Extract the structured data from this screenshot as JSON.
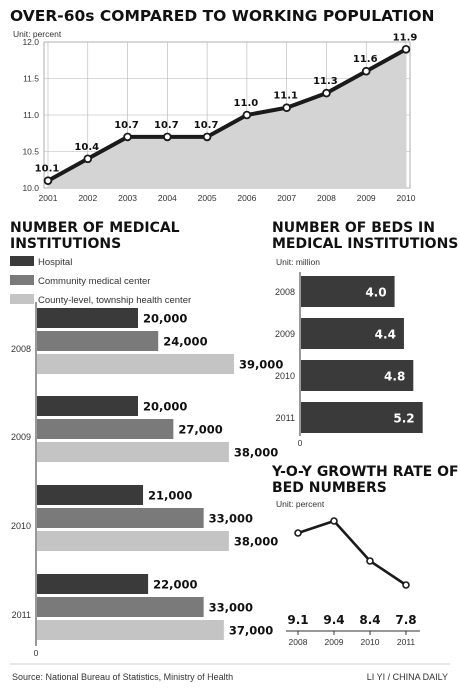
{
  "colors": {
    "hospital": "#3a3a3a",
    "community": "#7a7a7a",
    "county": "#c4c4c4",
    "beds": "#3a3a3a",
    "area_fill": "#d4d4d4",
    "line": "#1a1a1a"
  },
  "chart_data": [
    {
      "type": "area",
      "title": "OVER-60s COMPARED TO WORKING POPULATION",
      "unit": "Unit: percent",
      "categories": [
        "2001",
        "2002",
        "2003",
        "2004",
        "2005",
        "2006",
        "2007",
        "2008",
        "2009",
        "2010"
      ],
      "series": [
        {
          "values": [
            10.1,
            10.4,
            10.7,
            10.7,
            10.7,
            11.0,
            11.1,
            11.3,
            11.6,
            11.9
          ]
        }
      ],
      "value_labels": [
        "10.1",
        "10.4",
        "10.7",
        "10.7",
        "10.7",
        "11.0",
        "11.1",
        "11.3",
        "11.6",
        "11.9"
      ],
      "ylim": [
        10.0,
        12.0
      ],
      "yticks": [
        "10.0",
        "10.5",
        "11.0",
        "11.5",
        "12.0"
      ],
      "grid": true
    },
    {
      "type": "bar",
      "orientation": "horizontal",
      "title_lines": [
        "NUMBER OF MEDICAL",
        "INSTITUTIONS"
      ],
      "legend": [
        "Hospital",
        "Community medical center",
        "County-level, township health center"
      ],
      "categories": [
        "2008",
        "2009",
        "2010",
        "2011"
      ],
      "series": [
        {
          "name": "Hospital",
          "values": [
            20000,
            20000,
            21000,
            22000
          ],
          "labels": [
            "20,000",
            "20,000",
            "21,000",
            "22,000"
          ]
        },
        {
          "name": "Community medical center",
          "values": [
            24000,
            27000,
            33000,
            33000
          ],
          "labels": [
            "24,000",
            "27,000",
            "33,000",
            "33,000"
          ]
        },
        {
          "name": "County-level, township health center",
          "values": [
            39000,
            38000,
            38000,
            37000
          ],
          "labels": [
            "39,000",
            "38,000",
            "38,000",
            "37,000"
          ]
        }
      ],
      "axis_zero_label": "0"
    },
    {
      "type": "bar",
      "orientation": "horizontal",
      "title_lines": [
        "NUMBER OF BEDS IN",
        "MEDICAL INSTITUTIONS"
      ],
      "unit": "Unit: million",
      "categories": [
        "2008",
        "2009",
        "2010",
        "2011"
      ],
      "values": [
        4.0,
        4.4,
        4.8,
        5.2
      ],
      "labels": [
        "4.0",
        "4.4",
        "4.8",
        "5.2"
      ],
      "axis_zero_label": "0"
    },
    {
      "type": "line",
      "title_lines": [
        "Y-O-Y GROWTH RATE OF",
        "BED NUMBERS"
      ],
      "unit": "Unit: percent",
      "categories": [
        "2008",
        "2009",
        "2010",
        "2011"
      ],
      "values": [
        9.1,
        9.4,
        8.4,
        7.8
      ],
      "labels": [
        "9.1",
        "9.4",
        "8.4",
        "7.8"
      ]
    }
  ],
  "footer": {
    "source": "Source: National Bureau of Statistics, Ministry of Health",
    "credit": "LI YI / CHINA DAILY"
  }
}
